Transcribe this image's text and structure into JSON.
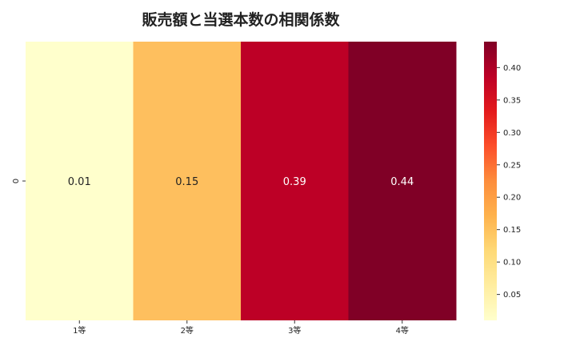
{
  "chart_data": {
    "type": "heatmap",
    "title": "販売額と当選本数の相関係数",
    "x_categories": [
      "1等",
      "2等",
      "3等",
      "4等"
    ],
    "y_categories": [
      "0"
    ],
    "values": [
      [
        0.01,
        0.15,
        0.39,
        0.44
      ]
    ],
    "value_labels": [
      "0.01",
      "0.15",
      "0.39",
      "0.44"
    ],
    "colormap": "YlOrRd",
    "cell_colors": [
      "#ffffcc",
      "#febf5e",
      "#bd0026",
      "#800026"
    ],
    "colorbar": {
      "range": [
        0.01,
        0.44
      ],
      "ticks": [
        0.05,
        0.1,
        0.15,
        0.2,
        0.25,
        0.3,
        0.35,
        0.4
      ],
      "tick_labels": [
        "0.05",
        "0.10",
        "0.15",
        "0.20",
        "0.25",
        "0.30",
        "0.35",
        "0.40"
      ]
    },
    "xlabel": "",
    "ylabel": ""
  }
}
